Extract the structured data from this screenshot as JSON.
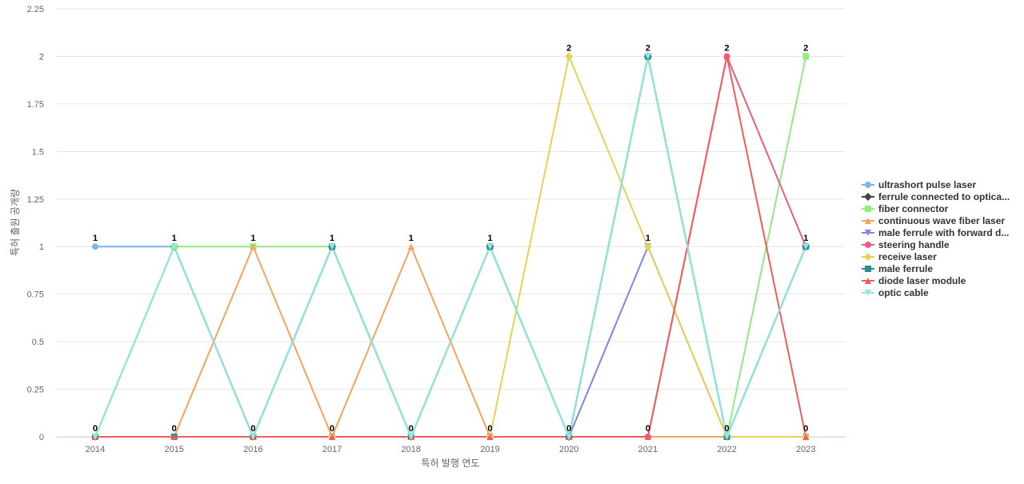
{
  "chart_data": {
    "type": "line",
    "title": "",
    "xlabel": "특허 발행 연도",
    "ylabel": "특허 출원 공개량",
    "ylim": [
      0,
      2.25
    ],
    "y_ticks": [
      "0",
      "0.25",
      "0.5",
      "0.75",
      "1",
      "1.25",
      "1.5",
      "1.75",
      "2",
      "2.25"
    ],
    "grid": true,
    "legend_position": "right",
    "categories": [
      "2014",
      "2015",
      "2016",
      "2017",
      "2018",
      "2019",
      "2020",
      "2021",
      "2022",
      "2023"
    ],
    "series": [
      {
        "name": "ultrashort pulse laser",
        "color": "#7cb5ec",
        "marker": "circle",
        "values": [
          1,
          1,
          0,
          0,
          0,
          0,
          0,
          0,
          0,
          0
        ]
      },
      {
        "name": "ferrule connected to optica...",
        "color": "#434348",
        "marker": "diamond",
        "values": [
          0,
          1,
          0,
          1,
          0,
          1,
          0,
          2,
          0,
          1
        ]
      },
      {
        "name": "fiber connector",
        "color": "#90ed7d",
        "marker": "square",
        "values": [
          0,
          1,
          1,
          1,
          0,
          1,
          0,
          2,
          0,
          2
        ]
      },
      {
        "name": "continuous wave fiber laser",
        "color": "#f7a35c",
        "marker": "triangle",
        "values": [
          0,
          0,
          1,
          0,
          1,
          0,
          0,
          0,
          0,
          0
        ]
      },
      {
        "name": "male ferrule with forward d...",
        "color": "#8085e9",
        "marker": "triangle-down",
        "values": [
          0,
          0,
          0,
          0,
          0,
          0,
          0,
          1,
          0,
          0
        ]
      },
      {
        "name": "steering handle",
        "color": "#f15c80",
        "marker": "circle",
        "values": [
          0,
          0,
          0,
          0,
          0,
          0,
          0,
          0,
          2,
          1
        ]
      },
      {
        "name": "receive laser",
        "color": "#e4d354",
        "marker": "diamond",
        "values": [
          0,
          0,
          0,
          0,
          0,
          0,
          2,
          1,
          0,
          0
        ]
      },
      {
        "name": "male ferrule",
        "color": "#2b908f",
        "marker": "square",
        "values": [
          0,
          0,
          0,
          1,
          0,
          1,
          0,
          2,
          0,
          1
        ]
      },
      {
        "name": "diode laser module",
        "color": "#f45b5b",
        "marker": "triangle",
        "values": [
          0,
          0,
          0,
          0,
          0,
          0,
          0,
          0,
          2,
          0
        ]
      },
      {
        "name": "optic cable",
        "color": "#91e8e1",
        "marker": "triangle-down",
        "values": [
          0,
          1,
          0,
          1,
          0,
          1,
          0,
          2,
          0,
          1
        ]
      }
    ],
    "data_labels": [
      "1",
      "1",
      "1",
      "1",
      "1",
      "1",
      "2",
      "2",
      "2",
      "2",
      "0",
      "0",
      "0",
      "0",
      "0",
      "0",
      "0",
      "0",
      "0",
      "1",
      "1",
      "0"
    ],
    "data_label_points": [
      {
        "x": "2014",
        "y": 1
      },
      {
        "x": "2015",
        "y": 1
      },
      {
        "x": "2016",
        "y": 1
      },
      {
        "x": "2017",
        "y": 1
      },
      {
        "x": "2018",
        "y": 1
      },
      {
        "x": "2019",
        "y": 1
      },
      {
        "x": "2020",
        "y": 2
      },
      {
        "x": "2021",
        "y": 2
      },
      {
        "x": "2022",
        "y": 2
      },
      {
        "x": "2023",
        "y": 2
      },
      {
        "x": "2014",
        "y": 0
      },
      {
        "x": "2015",
        "y": 0
      },
      {
        "x": "2016",
        "y": 0
      },
      {
        "x": "2017",
        "y": 0
      },
      {
        "x": "2018",
        "y": 0
      },
      {
        "x": "2019",
        "y": 0
      },
      {
        "x": "2020",
        "y": 0
      },
      {
        "x": "2021",
        "y": 0
      },
      {
        "x": "2022",
        "y": 0
      },
      {
        "x": "2021",
        "y": 1
      },
      {
        "x": "2023",
        "y": 1
      },
      {
        "x": "2023",
        "y": 0
      }
    ]
  }
}
